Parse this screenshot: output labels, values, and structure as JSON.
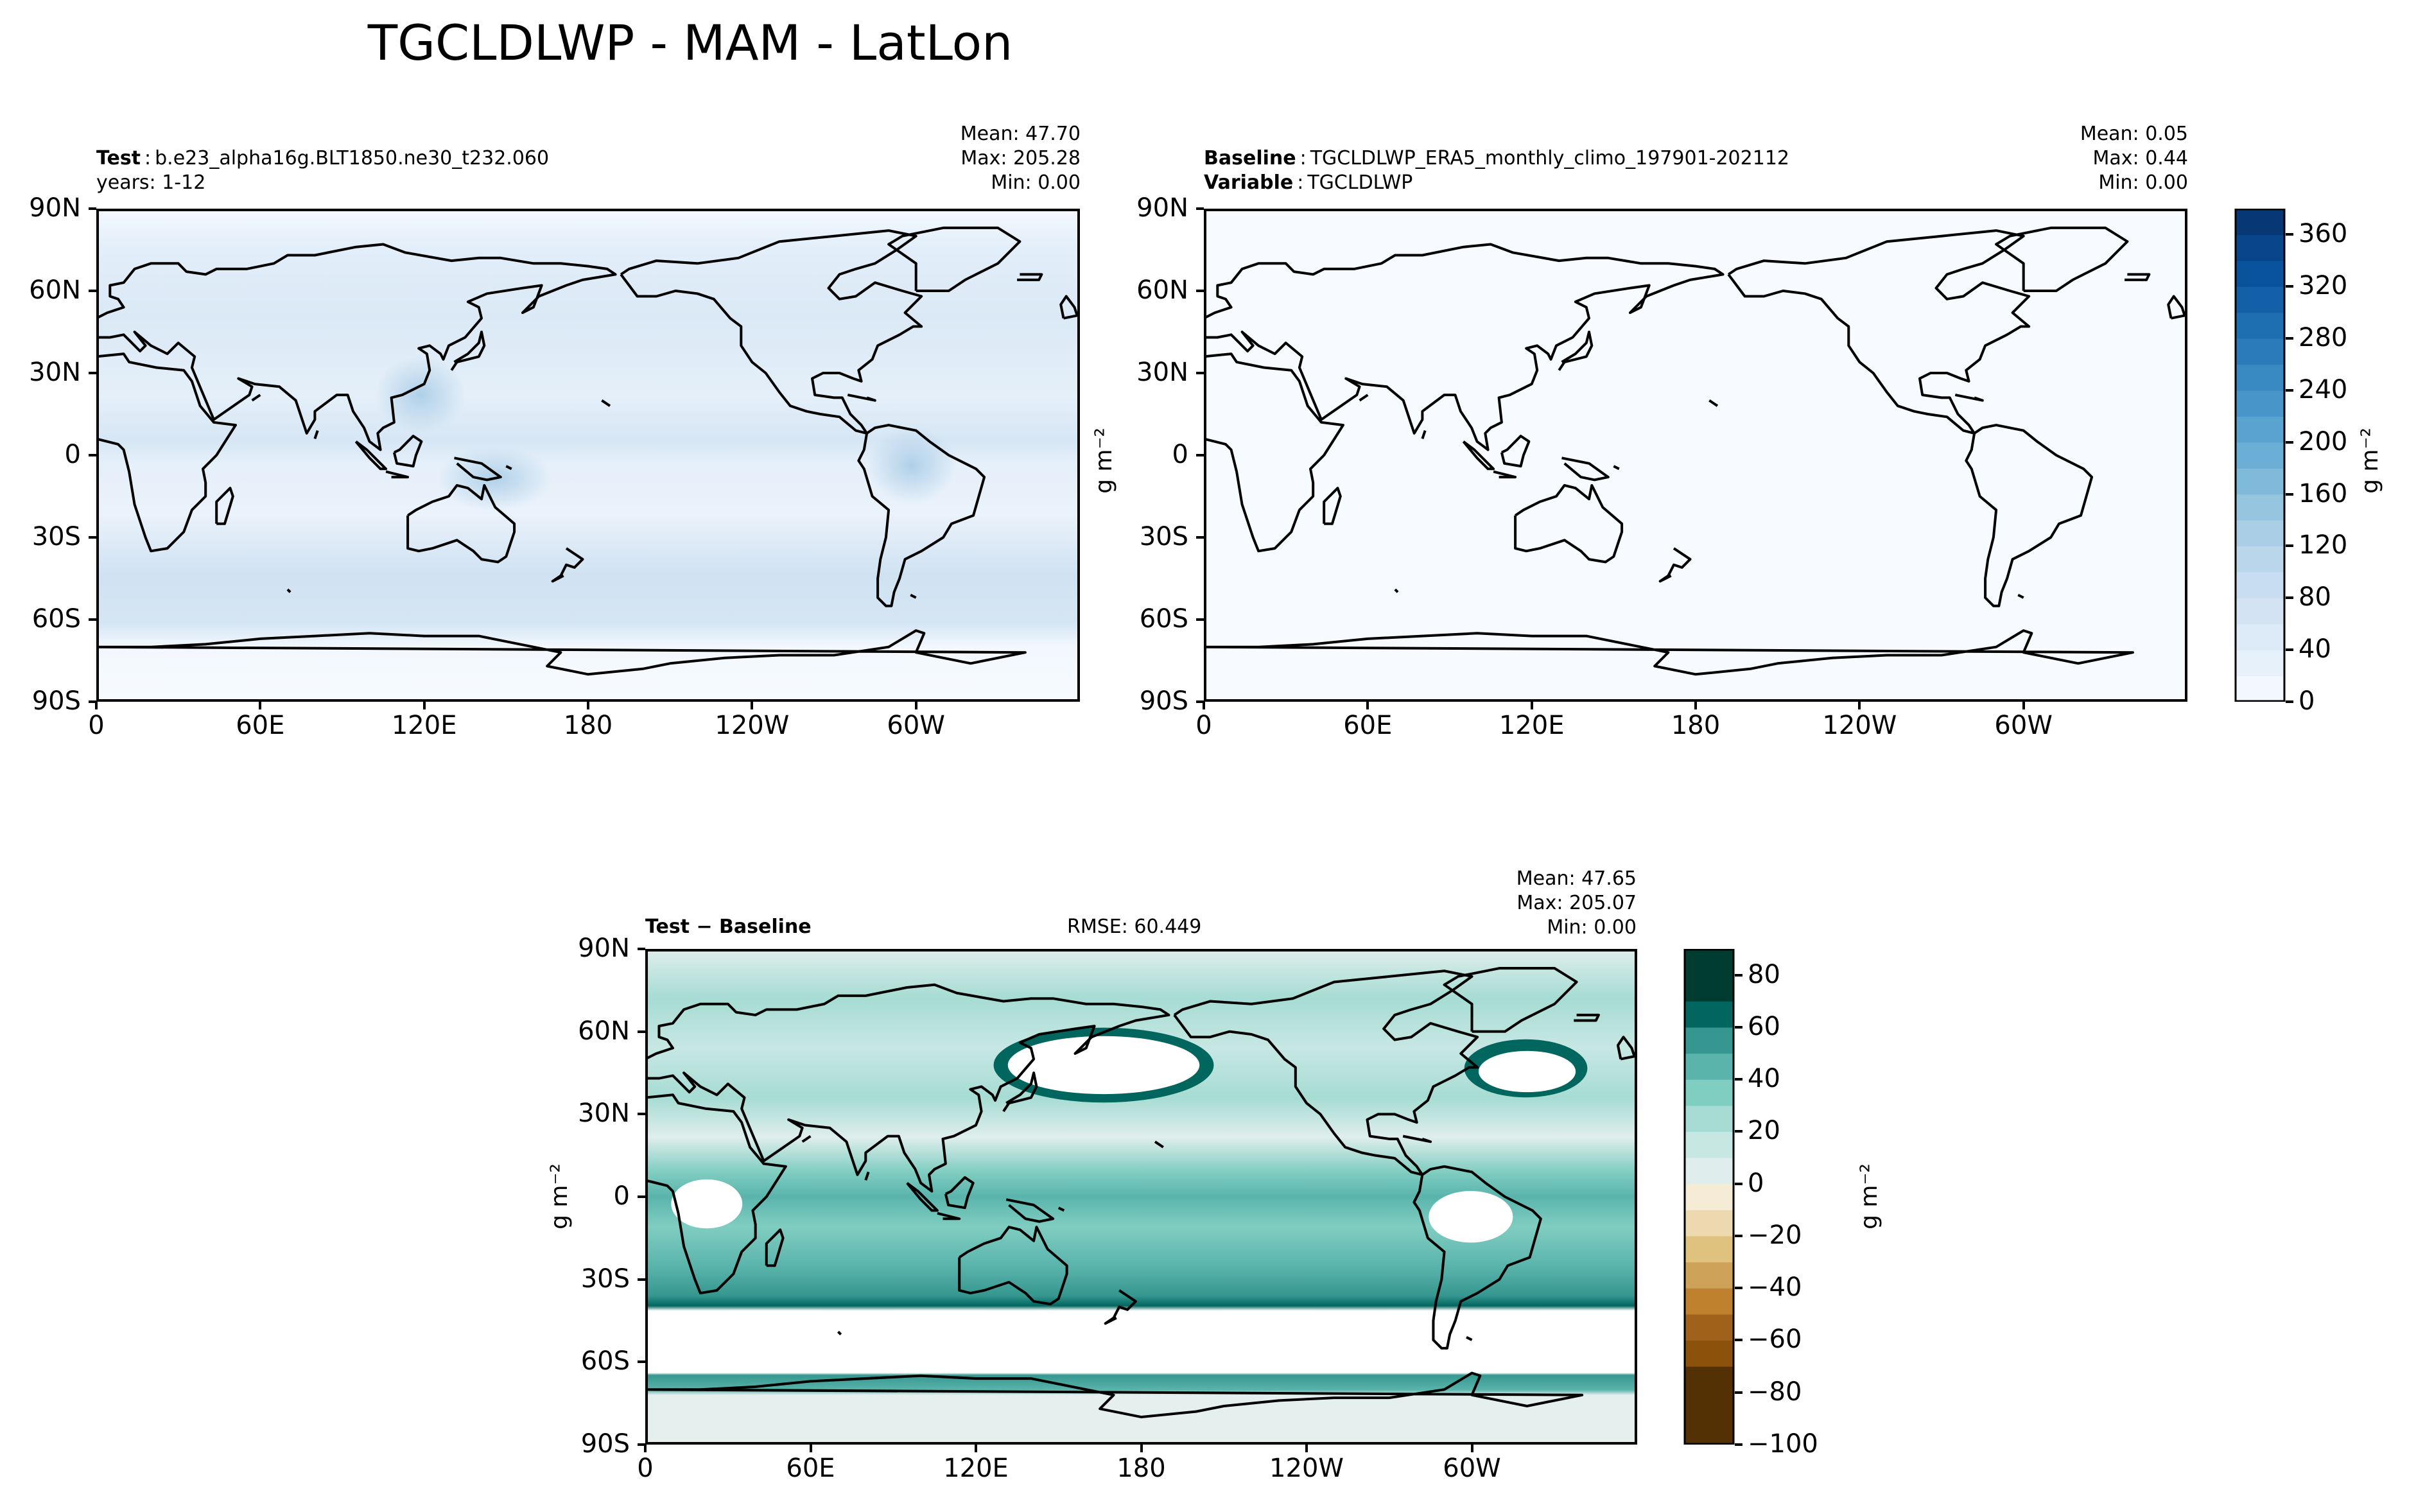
{
  "figure_title": "TGCLDLWP - MAM - LatLon",
  "panels": {
    "test": {
      "label_bold": "Test",
      "label_text": "b.e23_alpha16g.BLT1850.ne30_t232.060",
      "line2": "years: 1-12",
      "mean": "Mean: 47.70",
      "max": "Max: 205.28",
      "min": "Min:  0.00"
    },
    "baseline": {
      "label_bold": "Baseline",
      "label_text": "TGCLDLWP_ERA5_monthly_climo_197901-202112",
      "line2_bold": "Variable",
      "line2_text": "TGCLDLWP",
      "mean": "Mean:  0.05",
      "max": "Max:  0.44",
      "min": "Min:  0.00"
    },
    "diff": {
      "label": "Test − Baseline",
      "rmse": "RMSE: 60.449",
      "mean": "Mean: 47.65",
      "max": "Max: 205.07",
      "min": "Min:  0.00"
    }
  },
  "units": "g m⁻²",
  "colors": {
    "blues": [
      "#f7fbff",
      "#deebf7",
      "#c6dbef",
      "#9ecae1",
      "#6baed6",
      "#4292c6",
      "#2171b5",
      "#08519c",
      "#08306b"
    ],
    "brbg_pos": [
      "#dfeeec",
      "#c7e7e3",
      "#a6dcd3",
      "#80cdc1",
      "#5ab4ac",
      "#35978f",
      "#01665e",
      "#003c30"
    ],
    "brbg_neg": [
      "#f6ecd5",
      "#ecd9b0",
      "#dfc27d",
      "#cfa25a",
      "#bf812d",
      "#a0611a",
      "#8c510a",
      "#543005"
    ]
  },
  "chart_data": [
    {
      "type": "heatmap",
      "name": "test",
      "projection": "PlateCarree (central_longitude=180)",
      "x_ticks": [
        "0",
        "60E",
        "120E",
        "180",
        "120W",
        "60W"
      ],
      "y_ticks": [
        "90N",
        "60N",
        "30N",
        "0",
        "30S",
        "60S",
        "90S"
      ],
      "ylim": [
        -90,
        90
      ],
      "stats": {
        "mean": 47.7,
        "max": 205.28,
        "min": 0.0
      }
    },
    {
      "type": "heatmap",
      "name": "baseline",
      "projection": "PlateCarree (central_longitude=180)",
      "x_ticks": [
        "0",
        "60E",
        "120E",
        "180",
        "120W",
        "60W"
      ],
      "y_ticks": [
        "90N",
        "60N",
        "30N",
        "0",
        "30S",
        "60S",
        "90S"
      ],
      "ylim": [
        -90,
        90
      ],
      "stats": {
        "mean": 0.05,
        "max": 0.44,
        "min": 0.0
      }
    },
    {
      "type": "heatmap",
      "name": "difference",
      "projection": "PlateCarree (central_longitude=180)",
      "x_ticks": [
        "0",
        "60E",
        "120E",
        "180",
        "120W",
        "60W"
      ],
      "y_ticks": [
        "90N",
        "60N",
        "30N",
        "0",
        "30S",
        "60S",
        "90S"
      ],
      "ylim": [
        -90,
        90
      ],
      "stats": {
        "mean": 47.65,
        "max": 205.07,
        "min": 0.0,
        "rmse": 60.449
      }
    }
  ],
  "colorbars": {
    "main": {
      "ticks": [
        "0",
        "40",
        "80",
        "120",
        "160",
        "200",
        "240",
        "280",
        "320",
        "360"
      ],
      "range": [
        0,
        380
      ]
    },
    "diff": {
      "ticks": [
        "−100",
        "−80",
        "−60",
        "−40",
        "−20",
        "0",
        "20",
        "40",
        "60",
        "80"
      ],
      "range": [
        -100,
        90
      ]
    }
  }
}
